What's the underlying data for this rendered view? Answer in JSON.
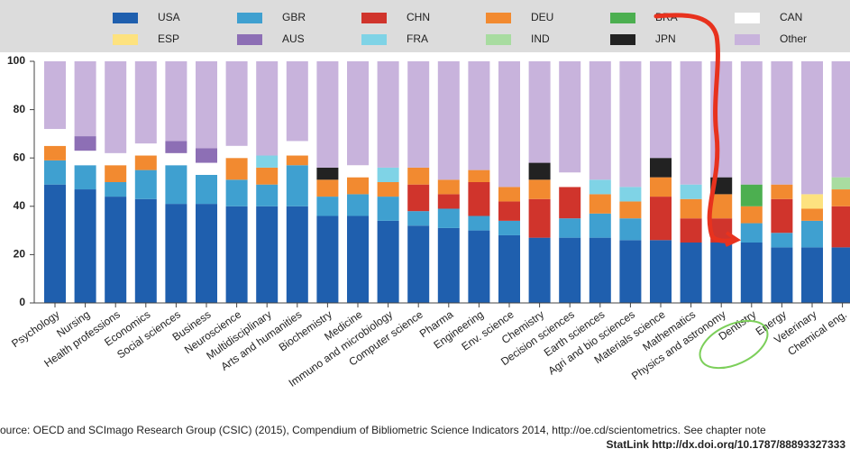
{
  "chart_data": {
    "type": "stacked_bar",
    "categories": [
      "Psychology",
      "Nursing",
      "Health professions",
      "Economics",
      "Social sciences",
      "Business",
      "Neuroscience",
      "Multidisciplinary",
      "Arts and humanities",
      "Biochemistry",
      "Medicine",
      "Immuno and microbiology",
      "Computer science",
      "Pharma",
      "Engineering",
      "Env. science",
      "Chemistry",
      "Decision sciences",
      "Earth sciences",
      "Agri and bio sciences",
      "Materials science",
      "Mathematics",
      "Physics and astronomy",
      "Dentistry",
      "Energy",
      "Veterinary",
      "Chemical eng."
    ],
    "series": [
      {
        "name": "USA",
        "color": "#1f5fae",
        "values": [
          49,
          47,
          44,
          43,
          41,
          41,
          40,
          40,
          40,
          36,
          36,
          34,
          32,
          31,
          30,
          28,
          27,
          27,
          27,
          26,
          26,
          25,
          25,
          25,
          23,
          23,
          23
        ]
      },
      {
        "name": "GBR",
        "color": "#3fa0d0",
        "values": [
          10,
          10,
          6,
          12,
          16,
          12,
          11,
          9,
          17,
          8,
          9,
          10,
          6,
          8,
          6,
          6,
          0,
          8,
          10,
          9,
          0,
          0,
          0,
          8,
          6,
          11,
          0
        ]
      },
      {
        "name": "CHN",
        "color": "#d0342c",
        "values": [
          0,
          0,
          0,
          0,
          0,
          0,
          0,
          0,
          0,
          0,
          0,
          0,
          11,
          6,
          14,
          8,
          16,
          13,
          0,
          0,
          18,
          10,
          10,
          0,
          14,
          0,
          17
        ]
      },
      {
        "name": "DEU",
        "color": "#f28a30",
        "values": [
          6,
          0,
          7,
          6,
          0,
          0,
          9,
          7,
          4,
          7,
          7,
          6,
          7,
          6,
          5,
          6,
          8,
          0,
          8,
          7,
          8,
          8,
          10,
          7,
          6,
          5,
          7
        ]
      },
      {
        "name": "BRA",
        "color": "#4caf50",
        "values": [
          0,
          0,
          0,
          0,
          0,
          0,
          0,
          0,
          0,
          0,
          0,
          0,
          0,
          0,
          0,
          0,
          0,
          0,
          0,
          0,
          0,
          0,
          0,
          9,
          0,
          0,
          0
        ]
      },
      {
        "name": "CAN",
        "color": "#ffffff",
        "values": [
          7,
          6,
          5,
          5,
          5,
          5,
          5,
          0,
          6,
          0,
          5,
          0,
          0,
          0,
          0,
          0,
          0,
          6,
          0,
          0,
          0,
          0,
          0,
          0,
          0,
          0,
          0
        ]
      },
      {
        "name": "ESP",
        "color": "#fde27f",
        "values": [
          0,
          0,
          0,
          0,
          0,
          0,
          0,
          0,
          0,
          0,
          0,
          0,
          0,
          0,
          0,
          0,
          0,
          0,
          0,
          0,
          0,
          0,
          0,
          0,
          0,
          6,
          0
        ]
      },
      {
        "name": "AUS",
        "color": "#8d6fb5",
        "values": [
          0,
          6,
          0,
          0,
          5,
          6,
          0,
          0,
          0,
          0,
          0,
          0,
          0,
          0,
          0,
          0,
          0,
          0,
          0,
          0,
          0,
          0,
          0,
          0,
          0,
          0,
          0
        ]
      },
      {
        "name": "FRA",
        "color": "#7fd3e6",
        "values": [
          0,
          0,
          0,
          0,
          0,
          0,
          0,
          5,
          0,
          0,
          0,
          6,
          0,
          0,
          0,
          0,
          0,
          0,
          6,
          6,
          0,
          6,
          0,
          0,
          0,
          0,
          0
        ]
      },
      {
        "name": "IND",
        "color": "#a8dca0",
        "values": [
          0,
          0,
          0,
          0,
          0,
          0,
          0,
          0,
          0,
          0,
          0,
          0,
          0,
          0,
          0,
          0,
          0,
          0,
          0,
          0,
          0,
          0,
          0,
          0,
          0,
          0,
          5
        ]
      },
      {
        "name": "JPN",
        "color": "#222222",
        "values": [
          0,
          0,
          0,
          0,
          0,
          0,
          0,
          0,
          0,
          5,
          0,
          0,
          0,
          0,
          0,
          0,
          7,
          0,
          0,
          0,
          8,
          0,
          7,
          0,
          0,
          0,
          0
        ]
      },
      {
        "name": "Other",
        "color": "#c8b3dc",
        "values": [
          28,
          31,
          38,
          34,
          33,
          36,
          35,
          39,
          33,
          44,
          43,
          44,
          44,
          49,
          45,
          52,
          42,
          46,
          49,
          52,
          40,
          51,
          48,
          51,
          51,
          55,
          48
        ]
      }
    ],
    "ylim": [
      0,
      100
    ],
    "yticks": [
      0,
      20,
      40,
      60,
      80,
      100
    ],
    "grid": false,
    "source": "ource: OECD and SCImago Research Group (CSIC) (2015), Compendium of Bibliometric Science Indicators 2014, http://oe.cd/scientometrics. See chapter note",
    "statlink": "StatLink  http://dx.doi.org/10.1787/88893327333"
  }
}
